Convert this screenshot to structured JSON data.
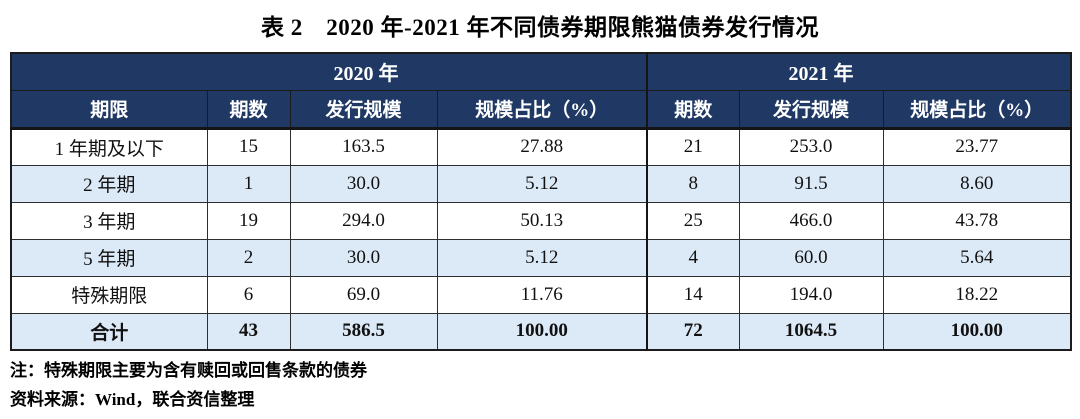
{
  "page": {
    "title": "表 2　2020 年-2021 年不同债券期限熊猫债券发行情况"
  },
  "table": {
    "year_groups": [
      {
        "label": "2020 年"
      },
      {
        "label": "2021 年"
      }
    ],
    "columns": {
      "term": "期限",
      "count": "期数",
      "scale": "发行规模",
      "share": "规模占比（%）"
    },
    "rows": [
      [
        "1 年期及以下",
        "15",
        "163.5",
        "27.88",
        "21",
        "253.0",
        "23.77"
      ],
      [
        "2 年期",
        "1",
        "30.0",
        "5.12",
        "8",
        "91.5",
        "8.60"
      ],
      [
        "3 年期",
        "19",
        "294.0",
        "50.13",
        "25",
        "466.0",
        "43.78"
      ],
      [
        "5 年期",
        "2",
        "30.0",
        "5.12",
        "4",
        "60.0",
        "5.64"
      ],
      [
        "特殊期限",
        "6",
        "69.0",
        "11.76",
        "14",
        "194.0",
        "18.22"
      ]
    ],
    "total_row": [
      "合计",
      "43",
      "586.5",
      "100.00",
      "72",
      "1064.5",
      "100.00"
    ]
  },
  "notes": {
    "note": "注：特殊期限主要为含有赎回或回售条款的债券",
    "source": "资料来源：Wind，联合资信整理"
  },
  "colors": {
    "header_bg": "#1f3864",
    "header_text": "#ffffff",
    "band_bg": "#dce9f6"
  }
}
